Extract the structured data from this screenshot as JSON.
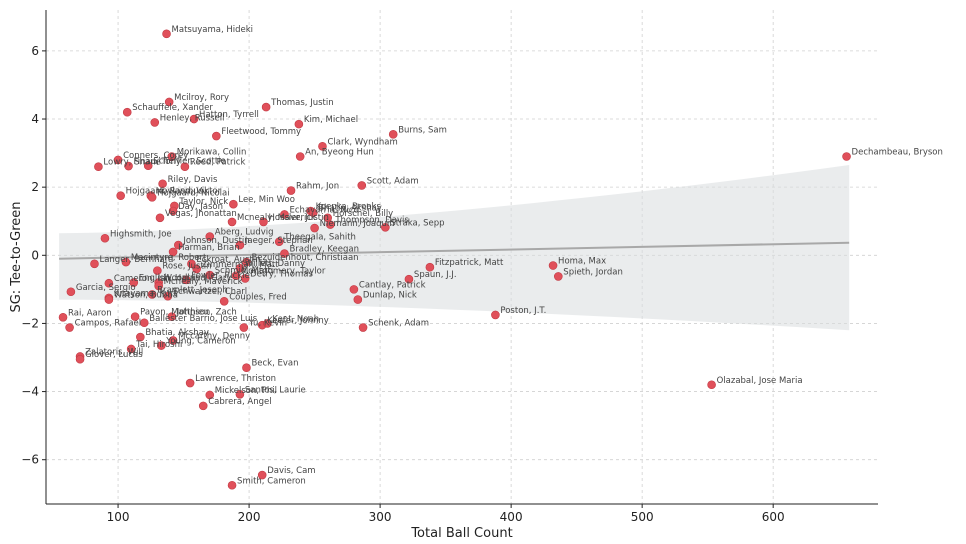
{
  "chart_data": {
    "type": "scatter",
    "title": "",
    "xlabel": "Total Ball Count",
    "ylabel": "SG: Tee-to-Green",
    "xlim": [
      45,
      680
    ],
    "ylim": [
      -7.3,
      7.2
    ],
    "xticks": [
      100,
      200,
      300,
      400,
      500,
      600
    ],
    "yticks": [
      -6,
      -4,
      -2,
      0,
      2,
      4,
      6
    ],
    "grid": true,
    "point_color": "#e0505a",
    "trend": {
      "x_start": 55,
      "x_end": 658,
      "y_start": -0.1,
      "y_end": 0.37,
      "ci_lower_start": -1.3,
      "ci_upper_start": 0.65,
      "ci_lower_end": -2.2,
      "ci_upper_end": 2.65
    },
    "points": [
      {
        "name": "Matsuyama, Hideki",
        "x": 137,
        "y": 6.5
      },
      {
        "name": "Mcilroy, Rory",
        "x": 139,
        "y": 4.5
      },
      {
        "name": "Schauffele, Xander",
        "x": 107,
        "y": 4.2
      },
      {
        "name": "Hatton, Tyrrell",
        "x": 158,
        "y": 4.0
      },
      {
        "name": "Henley, Russell",
        "x": 128,
        "y": 3.9
      },
      {
        "name": "Thomas, Justin",
        "x": 213,
        "y": 4.35
      },
      {
        "name": "Kim, Michael",
        "x": 238,
        "y": 3.85
      },
      {
        "name": "Fleetwood, Tommy",
        "x": 175,
        "y": 3.5
      },
      {
        "name": "Burns, Sam",
        "x": 310,
        "y": 3.55
      },
      {
        "name": "Clark, Wyndham",
        "x": 256,
        "y": 3.2
      },
      {
        "name": "An, Byeong Hun",
        "x": 239,
        "y": 2.9
      },
      {
        "name": "Conners, Corey",
        "x": 100,
        "y": 2.8
      },
      {
        "name": "Morikawa, Collin",
        "x": 141,
        "y": 2.9
      },
      {
        "name": "Lowry, Shane",
        "x": 85,
        "y": 2.6
      },
      {
        "name": "Finau, Tony",
        "x": 108,
        "y": 2.62
      },
      {
        "name": "Scheffler, Scottie",
        "x": 123,
        "y": 2.63
      },
      {
        "name": "Reed, Patrick",
        "x": 151,
        "y": 2.6
      },
      {
        "name": "Riley, Davis",
        "x": 134,
        "y": 2.1
      },
      {
        "name": "Scott, Adam",
        "x": 286,
        "y": 2.05
      },
      {
        "name": "Rahm, Jon",
        "x": 232,
        "y": 1.9
      },
      {
        "name": "Dechambeau, Bryson",
        "x": 656,
        "y": 2.9
      },
      {
        "name": "Hojgaard, Rasmus",
        "x": 102,
        "y": 1.75
      },
      {
        "name": "Hovland, Viktor",
        "x": 125,
        "y": 1.75
      },
      {
        "name": "Hojgaard, Nicolai",
        "x": 126,
        "y": 1.7
      },
      {
        "name": "Taylor, Nick",
        "x": 143,
        "y": 1.45
      },
      {
        "name": "Lee, Min Woo",
        "x": 188,
        "y": 1.5
      },
      {
        "name": "Day, Jason",
        "x": 142,
        "y": 1.3
      },
      {
        "name": "Vegas, Jhonattan",
        "x": 132,
        "y": 1.1
      },
      {
        "name": "Echavarria, Nico",
        "x": 227,
        "y": 1.2
      },
      {
        "name": "Koepka, Brooks",
        "x": 247,
        "y": 1.3
      },
      {
        "name": "Bhatia, Akshay",
        "x": 249,
        "y": 1.25
      },
      {
        "name": "Horschel, Billy",
        "x": 260,
        "y": 1.1
      },
      {
        "name": "Mcnealy, Maverick",
        "x": 187,
        "y": 0.98
      },
      {
        "name": "Hossler, Justin",
        "x": 211,
        "y": 0.98
      },
      {
        "name": "Niemann, Joaquin",
        "x": 250,
        "y": 0.8
      },
      {
        "name": "Thompson, Davis",
        "x": 262,
        "y": 0.9
      },
      {
        "name": "Straka, Sepp",
        "x": 304,
        "y": 0.82
      },
      {
        "name": "Highsmith, Joe",
        "x": 90,
        "y": 0.5
      },
      {
        "name": "Aberg, Ludvig",
        "x": 170,
        "y": 0.55
      },
      {
        "name": "Theegala, Sahith",
        "x": 223,
        "y": 0.4
      },
      {
        "name": "Johnson, Dustin",
        "x": 146,
        "y": 0.3
      },
      {
        "name": "Jaeger, Stephan",
        "x": 193,
        "y": 0.3
      },
      {
        "name": "Harman, Brian",
        "x": 142,
        "y": 0.1
      },
      {
        "name": "Bradley, Keegan",
        "x": 227,
        "y": 0.05
      },
      {
        "name": "Langer, Bernhard",
        "x": 82,
        "y": -0.25
      },
      {
        "name": "Macintyre, Robert",
        "x": 106,
        "y": -0.2
      },
      {
        "name": "Eckroat, Austin",
        "x": 156,
        "y": -0.25
      },
      {
        "name": "Bezuidenhout, Christiaan",
        "x": 198,
        "y": -0.2
      },
      {
        "name": "Rose, Justin",
        "x": 130,
        "y": -0.45
      },
      {
        "name": "Fitzpatrick, Matt",
        "x": 338,
        "y": -0.35
      },
      {
        "name": "Homa, Max",
        "x": 432,
        "y": -0.3
      },
      {
        "name": "Spieth, Jordan",
        "x": 436,
        "y": -0.62
      },
      {
        "name": "Zimmerman, Matt",
        "x": 160,
        "y": -0.4
      },
      {
        "name": "Willett, Danny",
        "x": 193,
        "y": -0.38
      },
      {
        "name": "Schmid, Matti",
        "x": 170,
        "y": -0.58
      },
      {
        "name": "Montgomery, Taylor",
        "x": 190,
        "y": -0.6
      },
      {
        "name": "Spaun, J.J.",
        "x": 322,
        "y": -0.7
      },
      {
        "name": "Detry, Thomas",
        "x": 197,
        "y": -0.68
      },
      {
        "name": "Cameron, Ian",
        "x": 93,
        "y": -0.82
      },
      {
        "name": "English, Harris",
        "x": 112,
        "y": -0.8
      },
      {
        "name": "Woodland, Gary",
        "x": 131,
        "y": -0.8
      },
      {
        "name": "Fowler, Rickie",
        "x": 152,
        "y": -0.72
      },
      {
        "name": "Mcnealy, Maverick",
        "x": 131,
        "y": -0.9
      },
      {
        "name": "Cantlay, Patrick",
        "x": 280,
        "y": -1.0
      },
      {
        "name": "Garcia, Sergio",
        "x": 64,
        "y": -1.07
      },
      {
        "name": "Kitayama, Kurt",
        "x": 93,
        "y": -1.25
      },
      {
        "name": "Bramlett, Joseph",
        "x": 126,
        "y": -1.15
      },
      {
        "name": "Schwartzel, Charl",
        "x": 138,
        "y": -1.2
      },
      {
        "name": "Watson, Bubba",
        "x": 93,
        "y": -1.3
      },
      {
        "name": "Couples, Fred",
        "x": 181,
        "y": -1.35
      },
      {
        "name": "Dunlap, Nick",
        "x": 283,
        "y": -1.3
      },
      {
        "name": "Poston, J.T.",
        "x": 388,
        "y": -1.75
      },
      {
        "name": "Rai, Aaron",
        "x": 58,
        "y": -1.82
      },
      {
        "name": "Pavon, Matthieu",
        "x": 113,
        "y": -1.8
      },
      {
        "name": "Johnson, Zach",
        "x": 141,
        "y": -1.8
      },
      {
        "name": "Campos, Rafael",
        "x": 63,
        "y": -2.12
      },
      {
        "name": "Ballester Barrio, Jose Luis",
        "x": 120,
        "y": -1.98
      },
      {
        "name": "Yu, Kevin",
        "x": 196,
        "y": -2.12
      },
      {
        "name": "Keefer, Johnny",
        "x": 210,
        "y": -2.05
      },
      {
        "name": "Kent, Noah",
        "x": 214,
        "y": -2.0
      },
      {
        "name": "Schenk, Adam",
        "x": 287,
        "y": -2.12
      },
      {
        "name": "Bhatia, Akshay",
        "x": 117,
        "y": -2.4
      },
      {
        "name": "Mccarthy, Denny",
        "x": 142,
        "y": -2.5
      },
      {
        "name": "Tai, Hiroshi",
        "x": 110,
        "y": -2.75
      },
      {
        "name": "Young, Cameron",
        "x": 133,
        "y": -2.65
      },
      {
        "name": "Zalatoris, Will",
        "x": 71,
        "y": -2.97
      },
      {
        "name": "Glover, Lucas",
        "x": 71,
        "y": -3.05
      },
      {
        "name": "Beck, Evan",
        "x": 198,
        "y": -3.3
      },
      {
        "name": "Lawrence, Thriston",
        "x": 155,
        "y": -3.75
      },
      {
        "name": "Olazabal, Jose Maria",
        "x": 553,
        "y": -3.8
      },
      {
        "name": "Mickelson, Phil",
        "x": 170,
        "y": -4.1
      },
      {
        "name": "Santos, Laurie",
        "x": 193,
        "y": -4.08
      },
      {
        "name": "Cabrera, Angel",
        "x": 165,
        "y": -4.42
      },
      {
        "name": "Davis, Cam",
        "x": 210,
        "y": -6.45
      },
      {
        "name": "Smith, Cameron",
        "x": 187,
        "y": -6.75
      }
    ]
  }
}
